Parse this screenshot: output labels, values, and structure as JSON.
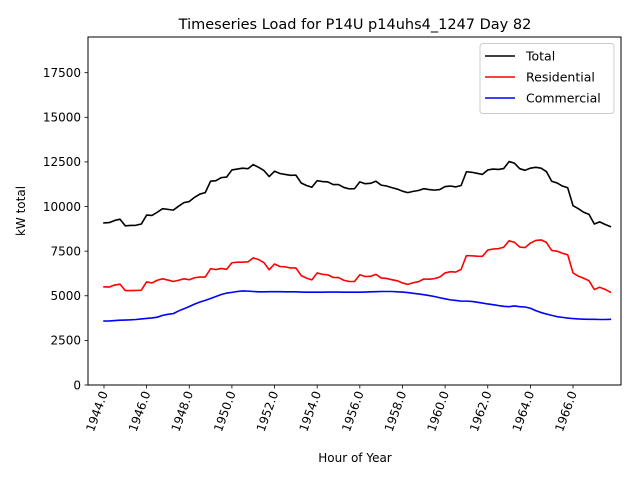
{
  "chart_data": {
    "type": "line",
    "title": "Timeseries Load for P14U p14uhs4_1247  Day 82",
    "xlabel": "Hour of Year",
    "ylabel": "kW total",
    "xlim": [
      1943.25,
      1968.25
    ],
    "ylim": [
      0,
      19500
    ],
    "xticks": [
      1944,
      1946,
      1948,
      1950,
      1952,
      1954,
      1956,
      1958,
      1960,
      1962,
      1964,
      1966
    ],
    "xtick_labels": [
      "1944.0",
      "1946.0",
      "1948.0",
      "1950.0",
      "1952.0",
      "1954.0",
      "1956.0",
      "1958.0",
      "1960.0",
      "1962.0",
      "1964.0",
      "1966.0"
    ],
    "yticks": [
      0,
      2500,
      5000,
      7500,
      10000,
      12500,
      15000,
      17500
    ],
    "ytick_labels": [
      "0",
      "2500",
      "5000",
      "7500",
      "10000",
      "12500",
      "15000",
      "17500"
    ],
    "legend_position": "top-right",
    "x_start": 1944,
    "x_step": 0.25,
    "series": [
      {
        "name": "Total",
        "color": "#000000",
        "values": [
          9080,
          9100,
          9220,
          9290,
          8920,
          8940,
          8950,
          9020,
          9520,
          9500,
          9680,
          9880,
          9840,
          9800,
          10020,
          10220,
          10280,
          10520,
          10700,
          10780,
          11420,
          11450,
          11620,
          11650,
          12050,
          12100,
          12150,
          12120,
          12350,
          12200,
          12020,
          11680,
          11980,
          11850,
          11800,
          11750,
          11760,
          11320,
          11180,
          11080,
          11450,
          11400,
          11380,
          11230,
          11230,
          11070,
          10990,
          11000,
          11380,
          11280,
          11300,
          11420,
          11200,
          11150,
          11060,
          10980,
          10860,
          10780,
          10850,
          10900,
          11000,
          10950,
          10920,
          10950,
          11120,
          11150,
          11100,
          11180,
          11950,
          11920,
          11860,
          11800,
          12050,
          12100,
          12080,
          12130,
          12520,
          12430,
          12120,
          12030,
          12150,
          12200,
          12150,
          11960,
          11420,
          11320,
          11150,
          11050,
          10050,
          9880,
          9680,
          9560,
          9020,
          9140,
          9000,
          8880
        ]
      },
      {
        "name": "Residential",
        "color": "#ff0000",
        "values": [
          5500,
          5490,
          5600,
          5650,
          5290,
          5290,
          5300,
          5310,
          5780,
          5720,
          5870,
          5950,
          5880,
          5800,
          5870,
          5950,
          5900,
          6010,
          6050,
          6050,
          6520,
          6470,
          6530,
          6480,
          6850,
          6880,
          6880,
          6900,
          7120,
          7030,
          6860,
          6460,
          6780,
          6640,
          6620,
          6560,
          6560,
          6130,
          5990,
          5890,
          6280,
          6200,
          6170,
          6030,
          6020,
          5870,
          5800,
          5800,
          6180,
          6080,
          6090,
          6200,
          6000,
          5970,
          5900,
          5840,
          5720,
          5640,
          5730,
          5790,
          5940,
          5930,
          5960,
          6050,
          6280,
          6350,
          6330,
          6480,
          7250,
          7240,
          7220,
          7210,
          7560,
          7620,
          7640,
          7720,
          8080,
          8000,
          7730,
          7700,
          7950,
          8100,
          8130,
          7990,
          7540,
          7500,
          7380,
          7300,
          6280,
          6100,
          5980,
          5840,
          5350,
          5480,
          5360,
          5200
        ]
      },
      {
        "name": "Commercial",
        "color": "#0000ff",
        "values": [
          3580,
          3590,
          3610,
          3630,
          3640,
          3650,
          3670,
          3700,
          3730,
          3760,
          3800,
          3900,
          3960,
          4000,
          4150,
          4270,
          4400,
          4530,
          4650,
          4740,
          4850,
          4960,
          5070,
          5150,
          5190,
          5240,
          5270,
          5260,
          5240,
          5220,
          5220,
          5230,
          5230,
          5230,
          5220,
          5220,
          5220,
          5210,
          5200,
          5200,
          5200,
          5200,
          5210,
          5210,
          5210,
          5200,
          5200,
          5200,
          5200,
          5210,
          5220,
          5230,
          5240,
          5240,
          5240,
          5220,
          5210,
          5180,
          5140,
          5100,
          5060,
          5010,
          4960,
          4890,
          4830,
          4770,
          4740,
          4700,
          4700,
          4680,
          4640,
          4590,
          4540,
          4500,
          4450,
          4410,
          4390,
          4430,
          4390,
          4370,
          4300,
          4170,
          4060,
          3980,
          3900,
          3830,
          3790,
          3750,
          3720,
          3700,
          3690,
          3680,
          3680,
          3670,
          3670,
          3680
        ]
      }
    ]
  }
}
